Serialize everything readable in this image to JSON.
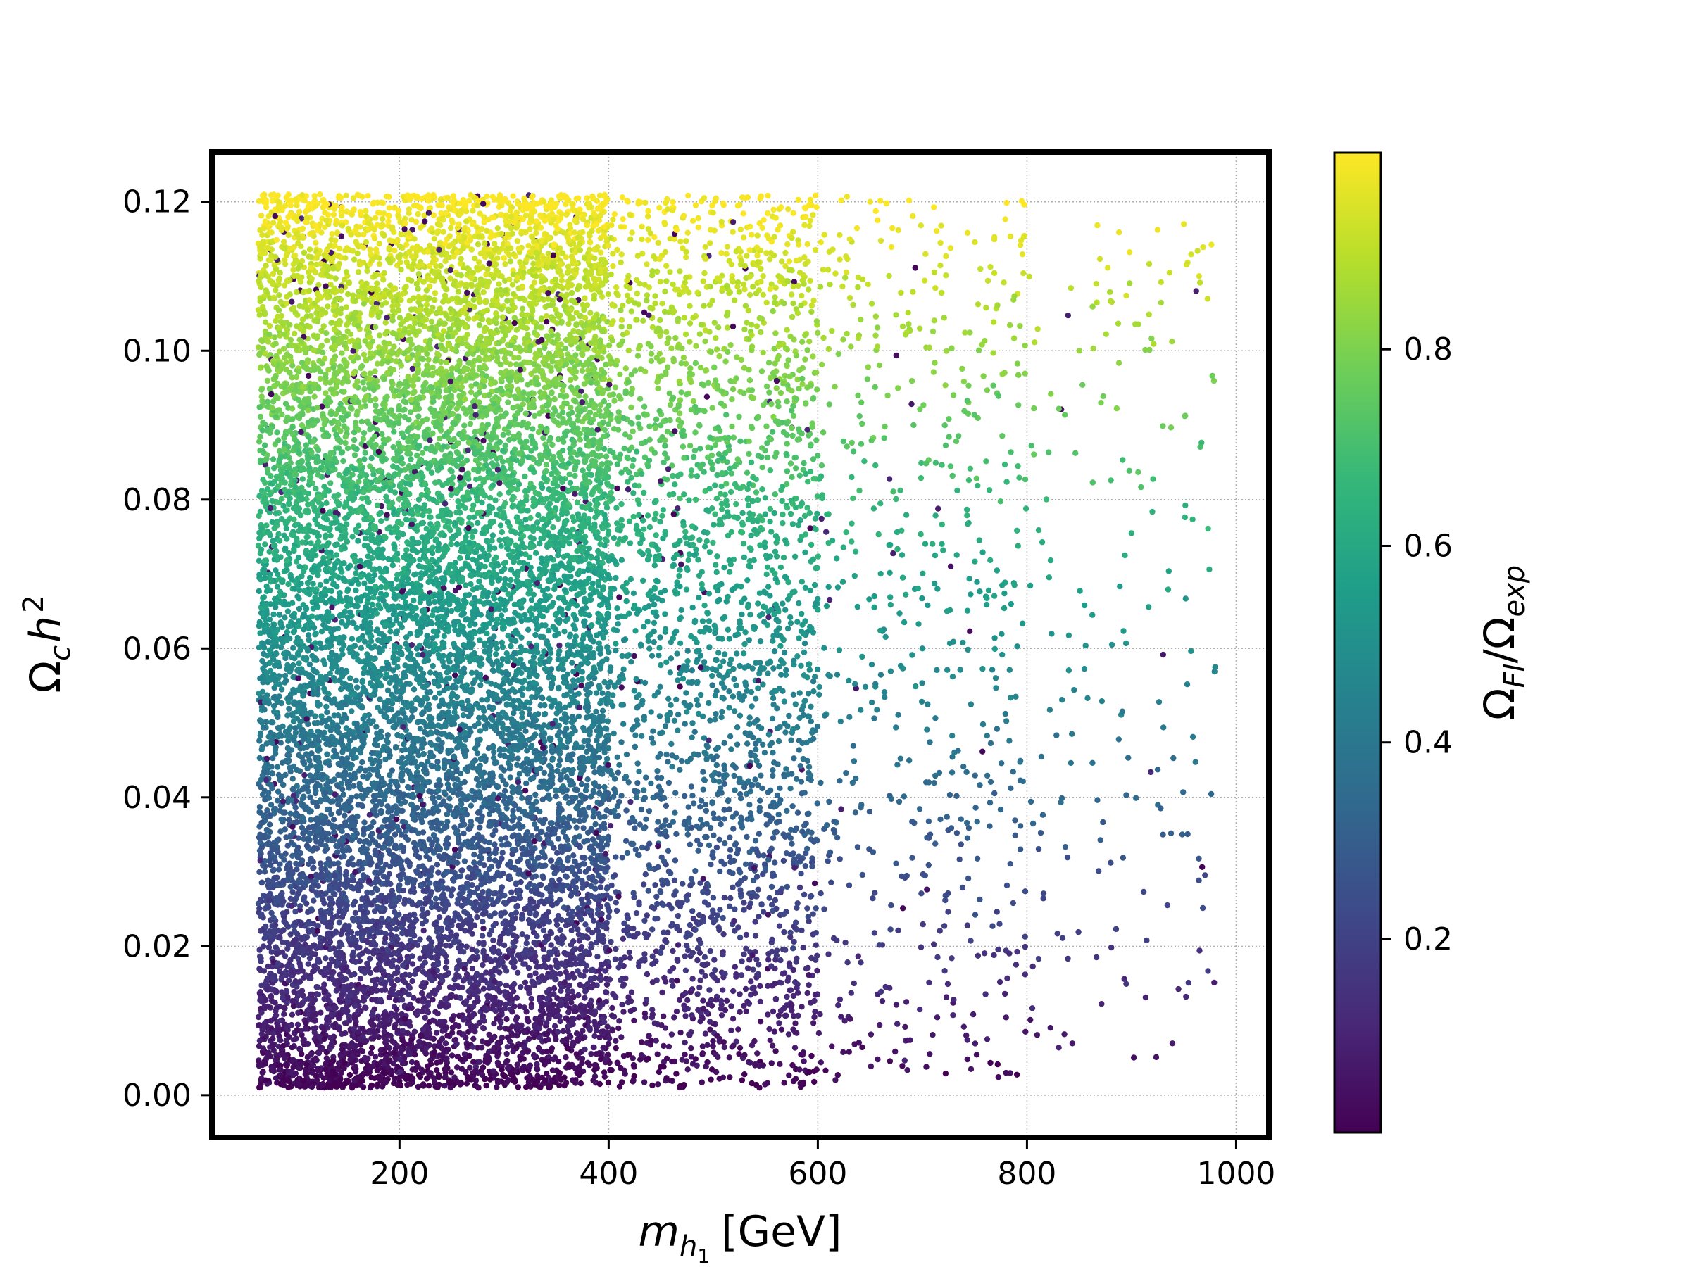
{
  "chart_data": {
    "type": "scatter",
    "title": "",
    "xlabel": {
      "base": "m",
      "sub": "h",
      "subsub": "1",
      "units": "[GeV]"
    },
    "ylabel": {
      "base": "Ω",
      "sub": "c",
      "rest": "h",
      "sup": "2"
    },
    "xlim": [
      22,
      1030
    ],
    "ylim": [
      -0.0055,
      0.1265
    ],
    "xticks": [
      200,
      400,
      600,
      800,
      1000
    ],
    "yticks": [
      0.0,
      0.02,
      0.04,
      0.06,
      0.08,
      0.1,
      0.12
    ],
    "xtick_labels": [
      "200",
      "400",
      "600",
      "800",
      "1000"
    ],
    "ytick_labels": [
      "0.00",
      "0.02",
      "0.04",
      "0.06",
      "0.08",
      "0.10",
      "0.12"
    ],
    "grid": true,
    "point_color_variable": "Ω_FI / Ω_exp",
    "colormap": "viridis",
    "colormap_stops": [
      "#440154",
      "#482878",
      "#3e4989",
      "#31688e",
      "#26828e",
      "#1f9e89",
      "#35b779",
      "#6ece58",
      "#b5de2b",
      "#fde725"
    ],
    "colorbar": {
      "label": {
        "base1": "Ω",
        "sub1": "FI",
        "slash": "/",
        "base2": "Ω",
        "sub2": "exp"
      },
      "range": [
        0.003,
        1.0
      ],
      "ticks": [
        0.2,
        0.4,
        0.6,
        0.8
      ],
      "tick_labels": [
        "0.2",
        "0.4",
        "0.6",
        "0.8"
      ]
    },
    "regions": [
      {
        "x_range": [
          65,
          200
        ],
        "y_range": [
          0.001,
          0.121
        ],
        "count": 5200,
        "color_model": "y/0.12 with scatter"
      },
      {
        "x_range": [
          200,
          400
        ],
        "y_range": [
          0.001,
          0.121
        ],
        "count": 7400,
        "color_model": "y/0.12 with scatter"
      },
      {
        "x_range": [
          400,
          600
        ],
        "y_range": [
          0.001,
          0.121
        ],
        "count": 2600,
        "color_model": "y/0.12 with scatter"
      },
      {
        "x_range": [
          600,
          800
        ],
        "y_range": [
          0.002,
          0.121
        ],
        "count": 620,
        "color_model": "y/0.12 with scatter"
      },
      {
        "x_range": [
          800,
          980
        ],
        "y_range": [
          0.005,
          0.118
        ],
        "count": 190,
        "color_model": "y/0.12 with scatter"
      }
    ],
    "sample_points": [
      {
        "x": 980,
        "y": 0.0575,
        "c": 0.47
      },
      {
        "x": 950,
        "y": 0.117,
        "c": 0.97
      },
      {
        "x": 900,
        "y": 0.0755,
        "c": 0.63
      },
      {
        "x": 930,
        "y": 0.035,
        "c": 0.29
      },
      {
        "x": 850,
        "y": 0.1,
        "c": 0.84
      },
      {
        "x": 780,
        "y": 0.003,
        "c": 0.03
      },
      {
        "x": 700,
        "y": 0.06,
        "c": 0.5
      },
      {
        "x": 650,
        "y": 0.12,
        "c": 0.98
      }
    ]
  }
}
